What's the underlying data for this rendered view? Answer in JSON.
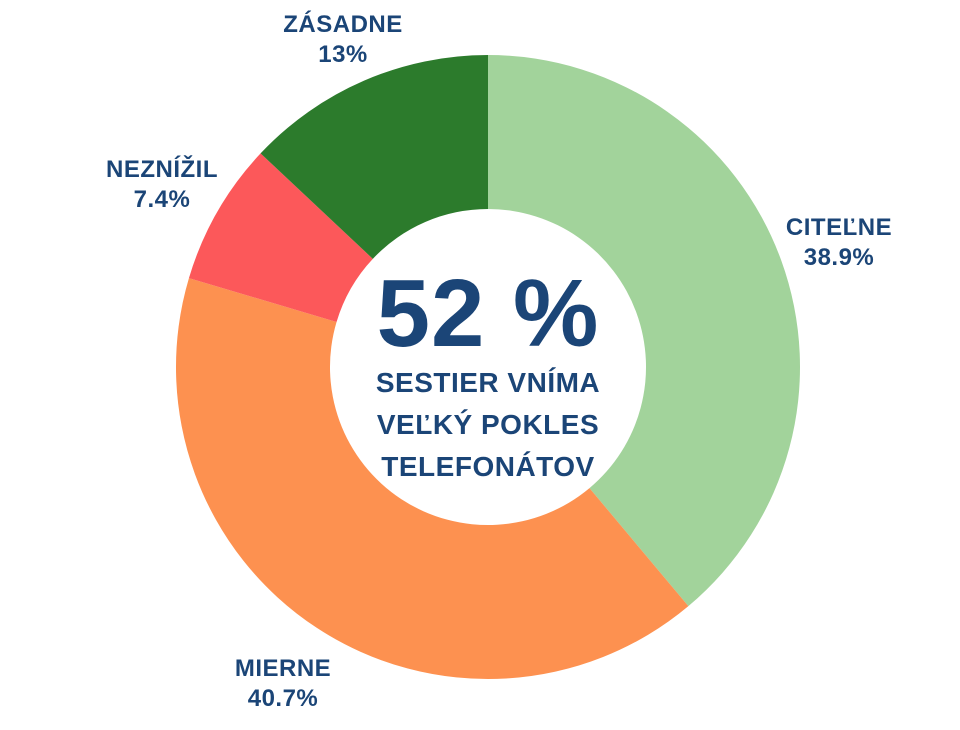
{
  "chart_data": {
    "type": "pie",
    "donut": true,
    "start_angle": "12-oclock",
    "direction": "clockwise",
    "title": "",
    "legend": "none",
    "text_color": "#1b4577",
    "background_color": "#ffffff",
    "slices": [
      {
        "id": "citelne",
        "label": "CITEĽNE",
        "value": 38.9,
        "display": "38.9%",
        "color": "#a2d39b"
      },
      {
        "id": "mierne",
        "label": "MIERNE",
        "value": 40.7,
        "display": "40.7%",
        "color": "#fd9150"
      },
      {
        "id": "neznizil",
        "label": "NEZNÍŽIL",
        "value": 7.4,
        "display": "7.4%",
        "color": "#fc585a"
      },
      {
        "id": "zasadne",
        "label": "ZÁSADNE",
        "value": 13.0,
        "display": "13%",
        "color": "#2c7b2c"
      }
    ],
    "center_text": {
      "headline": "52 %",
      "lines": [
        "SESTIER VNÍMA",
        "VEĽKÝ POKLES",
        "TELEFONÁTOV"
      ]
    }
  }
}
